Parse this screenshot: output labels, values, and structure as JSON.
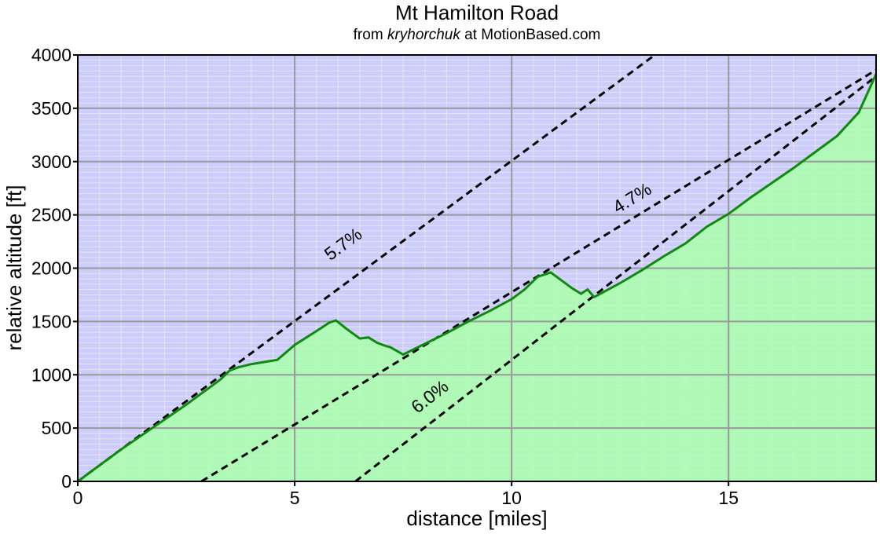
{
  "chart_data": {
    "type": "area",
    "title": "Mt Hamilton Road",
    "subtitle": {
      "prefix": "from ",
      "author": "kryhorchuk",
      "suffix": " at MotionBased.com"
    },
    "xlabel": "distance [miles]",
    "ylabel": "relative altitude [ft]",
    "xlim": [
      0,
      18.4
    ],
    "ylim": [
      0,
      4000
    ],
    "x_ticks": [
      0,
      5,
      10,
      15
    ],
    "y_ticks": [
      0,
      500,
      1000,
      1500,
      2000,
      2500,
      3000,
      3500,
      4000
    ],
    "grid": true,
    "colors": {
      "background": "#ccccff",
      "fill": "#aaffaa",
      "profile_line": "#118811",
      "major_grid": "#999999",
      "minor_grid": "#e6e6e6",
      "reference_line": "#000000"
    },
    "profile": {
      "x": [
        0,
        0.5,
        1.0,
        1.5,
        2.0,
        2.5,
        3.0,
        3.3,
        3.5,
        3.7,
        4.0,
        4.3,
        4.6,
        5.0,
        5.5,
        5.8,
        5.95,
        6.2,
        6.5,
        6.7,
        6.9,
        7.1,
        7.2,
        7.5,
        7.7,
        8.0,
        8.5,
        9.0,
        9.5,
        10.0,
        10.3,
        10.6,
        10.9,
        11.1,
        11.4,
        11.6,
        11.75,
        11.9,
        12.0,
        12.5,
        13.0,
        13.5,
        14.0,
        14.5,
        15.0,
        15.5,
        16.0,
        16.5,
        17.0,
        17.5,
        18.0,
        18.4
      ],
      "y": [
        0,
        150,
        300,
        440,
        580,
        720,
        870,
        960,
        1040,
        1070,
        1100,
        1120,
        1140,
        1280,
        1410,
        1490,
        1510,
        1430,
        1340,
        1350,
        1300,
        1270,
        1260,
        1190,
        1230,
        1290,
        1390,
        1500,
        1600,
        1710,
        1800,
        1920,
        1960,
        1900,
        1810,
        1760,
        1800,
        1730,
        1750,
        1860,
        1980,
        2110,
        2230,
        2390,
        2510,
        2660,
        2800,
        2940,
        3090,
        3240,
        3460,
        3820
      ]
    },
    "reference_lines": [
      {
        "label": "5.7%",
        "x": [
          0,
          13.3
        ],
        "y": [
          0,
          4000
        ],
        "label_at": [
          6.2,
          2180
        ]
      },
      {
        "label": "4.7%",
        "x": [
          2.85,
          18.4
        ],
        "y": [
          0,
          3860
        ],
        "label_at": [
          12.85,
          2610
        ]
      },
      {
        "label": "6.0%",
        "x": [
          6.4,
          18.4
        ],
        "y": [
          0,
          3800
        ],
        "label_at": [
          8.2,
          750
        ]
      }
    ]
  }
}
